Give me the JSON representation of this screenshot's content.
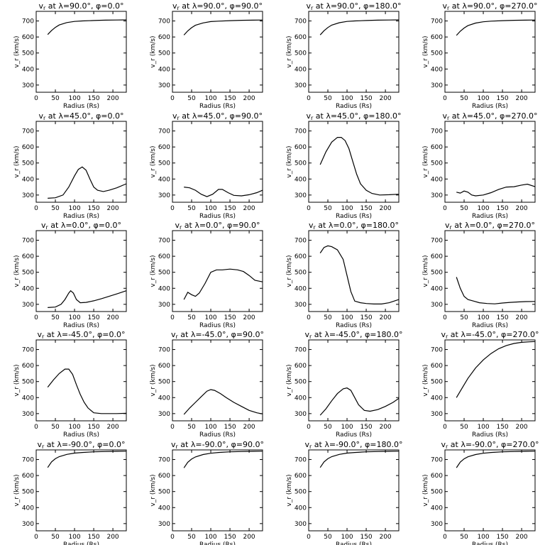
{
  "chart_data": [
    {
      "type": "line",
      "title": "v_r at λ=90.0°, φ=0.0°",
      "title_parts": {
        "lambda": "90.0",
        "phi": "0.0"
      },
      "xlabel": "Radius (Rs)",
      "ylabel": "v_r (km/s)",
      "xlim": [
        0,
        235
      ],
      "ylim": [
        255,
        760
      ],
      "xticks": [
        0,
        50,
        100,
        150,
        200
      ],
      "yticks": [
        300,
        400,
        500,
        600,
        700
      ],
      "x": [
        30,
        40,
        50,
        60,
        80,
        100,
        120,
        150,
        180,
        210,
        235
      ],
      "values": [
        615,
        640,
        660,
        675,
        690,
        697,
        700,
        703,
        705,
        706,
        707
      ]
    },
    {
      "type": "line",
      "title": "v_r at λ=90.0°, φ=90.0°",
      "title_parts": {
        "lambda": "90.0",
        "phi": "90.0"
      },
      "xlabel": "Radius (Rs)",
      "ylabel": "v_r (km/s)",
      "xlim": [
        0,
        235
      ],
      "ylim": [
        255,
        760
      ],
      "xticks": [
        0,
        50,
        100,
        150,
        200
      ],
      "yticks": [
        300,
        400,
        500,
        600,
        700
      ],
      "x": [
        30,
        40,
        50,
        60,
        80,
        100,
        120,
        150,
        180,
        210,
        235
      ],
      "values": [
        612,
        638,
        658,
        673,
        688,
        696,
        699,
        702,
        704,
        705,
        706
      ]
    },
    {
      "type": "line",
      "title": "v_r at λ=90.0°, φ=180.0°",
      "title_parts": {
        "lambda": "90.0",
        "phi": "180.0"
      },
      "xlabel": "Radius (Rs)",
      "ylabel": "v_r (km/s)",
      "xlim": [
        0,
        235
      ],
      "ylim": [
        255,
        760
      ],
      "xticks": [
        0,
        50,
        100,
        150,
        200
      ],
      "yticks": [
        300,
        400,
        500,
        600,
        700
      ],
      "x": [
        30,
        40,
        50,
        60,
        80,
        100,
        120,
        150,
        180,
        210,
        235
      ],
      "values": [
        613,
        639,
        659,
        674,
        689,
        697,
        700,
        703,
        705,
        706,
        707
      ]
    },
    {
      "type": "line",
      "title": "v_r at λ=90.0°, φ=270.0°",
      "title_parts": {
        "lambda": "90.0",
        "phi": "270.0"
      },
      "xlabel": "Radius (Rs)",
      "ylabel": "v_r (km/s)",
      "xlim": [
        0,
        235
      ],
      "ylim": [
        255,
        760
      ],
      "xticks": [
        0,
        50,
        100,
        150,
        200
      ],
      "yticks": [
        300,
        400,
        500,
        600,
        700
      ],
      "x": [
        30,
        40,
        50,
        60,
        80,
        100,
        120,
        150,
        180,
        210,
        235
      ],
      "values": [
        610,
        636,
        656,
        671,
        687,
        695,
        699,
        702,
        704,
        705,
        706
      ]
    },
    {
      "type": "line",
      "title": "v_r at λ=45.0°, φ=0.0°",
      "title_parts": {
        "lambda": "45.0",
        "phi": "0.0"
      },
      "xlabel": "Radius (Rs)",
      "ylabel": "v_r (km/s)",
      "xlim": [
        0,
        235
      ],
      "ylim": [
        255,
        760
      ],
      "xticks": [
        0,
        50,
        100,
        150,
        200
      ],
      "yticks": [
        300,
        400,
        500,
        600,
        700
      ],
      "x": [
        30,
        50,
        70,
        85,
        100,
        110,
        120,
        130,
        140,
        150,
        160,
        175,
        190,
        210,
        235
      ],
      "values": [
        280,
        283,
        300,
        350,
        420,
        460,
        475,
        455,
        400,
        350,
        330,
        322,
        330,
        345,
        370
      ]
    },
    {
      "type": "line",
      "title": "v_r at λ=45.0°, φ=90.0°",
      "title_parts": {
        "lambda": "45.0",
        "phi": "90.0"
      },
      "xlabel": "Radius (Rs)",
      "ylabel": "v_r (km/s)",
      "xlim": [
        0,
        235
      ],
      "ylim": [
        255,
        760
      ],
      "xticks": [
        0,
        50,
        100,
        150,
        200
      ],
      "yticks": [
        300,
        400,
        500,
        600,
        700
      ],
      "x": [
        30,
        45,
        60,
        75,
        90,
        105,
        120,
        130,
        145,
        160,
        180,
        200,
        220,
        235
      ],
      "values": [
        350,
        345,
        330,
        305,
        290,
        305,
        335,
        335,
        315,
        298,
        295,
        302,
        315,
        330
      ]
    },
    {
      "type": "line",
      "title": "v_r at λ=45.0°, φ=180.0°",
      "title_parts": {
        "lambda": "45.0",
        "phi": "180.0"
      },
      "xlabel": "Radius (Rs)",
      "ylabel": "v_r (km/s)",
      "xlim": [
        0,
        235
      ],
      "ylim": [
        255,
        760
      ],
      "xticks": [
        0,
        50,
        100,
        150,
        200
      ],
      "yticks": [
        300,
        400,
        500,
        600,
        700
      ],
      "x": [
        30,
        45,
        60,
        75,
        85,
        95,
        105,
        115,
        125,
        135,
        150,
        165,
        185,
        210,
        235
      ],
      "values": [
        490,
        570,
        630,
        660,
        660,
        640,
        590,
        510,
        430,
        370,
        330,
        310,
        300,
        302,
        305
      ]
    },
    {
      "type": "line",
      "title": "v_r at λ=45.0°, φ=270.0°",
      "title_parts": {
        "lambda": "45.0",
        "phi": "270.0"
      },
      "xlabel": "Radius (Rs)",
      "ylabel": "v_r (km/s)",
      "xlim": [
        0,
        235
      ],
      "ylim": [
        255,
        760
      ],
      "xticks": [
        0,
        50,
        100,
        150,
        200
      ],
      "yticks": [
        300,
        400,
        500,
        600,
        700
      ],
      "x": [
        30,
        40,
        50,
        60,
        70,
        80,
        100,
        120,
        140,
        160,
        180,
        200,
        215,
        235
      ],
      "values": [
        318,
        312,
        325,
        318,
        300,
        295,
        300,
        315,
        335,
        350,
        352,
        362,
        368,
        352
      ]
    },
    {
      "type": "line",
      "title": "v_r at λ=0.0°, φ=0.0°",
      "title_parts": {
        "lambda": "0.0",
        "phi": "0.0"
      },
      "xlabel": "Radius (Rs)",
      "ylabel": "v_r (km/s)",
      "xlim": [
        0,
        235
      ],
      "ylim": [
        255,
        760
      ],
      "xticks": [
        0,
        50,
        100,
        150,
        200
      ],
      "yticks": [
        300,
        400,
        500,
        600,
        700
      ],
      "x": [
        30,
        50,
        65,
        75,
        85,
        90,
        97,
        105,
        115,
        130,
        150,
        170,
        190,
        210,
        235
      ],
      "values": [
        280,
        283,
        300,
        330,
        370,
        385,
        370,
        330,
        310,
        312,
        322,
        335,
        350,
        365,
        385
      ]
    },
    {
      "type": "line",
      "title": "v_r at λ=0.0°, φ=90.0°",
      "title_parts": {
        "lambda": "0.0",
        "phi": "90.0"
      },
      "xlabel": "Radius (Rs)",
      "ylabel": "v_r (km/s)",
      "xlim": [
        0,
        235
      ],
      "ylim": [
        255,
        760
      ],
      "xticks": [
        0,
        50,
        100,
        150,
        200
      ],
      "yticks": [
        300,
        400,
        500,
        600,
        700
      ],
      "x": [
        30,
        40,
        50,
        60,
        70,
        85,
        100,
        115,
        130,
        150,
        170,
        185,
        200,
        215,
        235
      ],
      "values": [
        330,
        375,
        360,
        350,
        370,
        430,
        500,
        515,
        515,
        520,
        515,
        505,
        480,
        450,
        440
      ]
    },
    {
      "type": "line",
      "title": "v_r at λ=0.0°, φ=180.0°",
      "title_parts": {
        "lambda": "0.0",
        "phi": "180.0"
      },
      "xlabel": "Radius (Rs)",
      "ylabel": "v_r (km/s)",
      "xlim": [
        0,
        235
      ],
      "ylim": [
        255,
        760
      ],
      "xticks": [
        0,
        50,
        100,
        150,
        200
      ],
      "yticks": [
        300,
        400,
        500,
        600,
        700
      ],
      "x": [
        30,
        40,
        50,
        60,
        75,
        90,
        100,
        110,
        120,
        135,
        150,
        170,
        190,
        210,
        235
      ],
      "values": [
        620,
        655,
        665,
        660,
        640,
        580,
        480,
        380,
        320,
        310,
        305,
        302,
        302,
        310,
        330
      ]
    },
    {
      "type": "line",
      "title": "v_r at λ=0.0°, φ=270.0°",
      "title_parts": {
        "lambda": "0.0",
        "phi": "270.0"
      },
      "xlabel": "Radius (Rs)",
      "ylabel": "v_r (km/s)",
      "xlim": [
        0,
        235
      ],
      "ylim": [
        255,
        760
      ],
      "xticks": [
        0,
        50,
        100,
        150,
        200
      ],
      "yticks": [
        300,
        400,
        500,
        600,
        700
      ],
      "x": [
        30,
        40,
        50,
        60,
        75,
        90,
        110,
        130,
        150,
        170,
        190,
        210,
        235
      ],
      "values": [
        470,
        400,
        350,
        330,
        320,
        310,
        305,
        303,
        308,
        312,
        315,
        317,
        318
      ]
    },
    {
      "type": "line",
      "title": "v_r at λ=-45.0°, φ=0.0°",
      "title_parts": {
        "lambda": "-45.0",
        "phi": "0.0"
      },
      "xlabel": "Radius (Rs)",
      "ylabel": "v_r (km/s)",
      "xlim": [
        0,
        235
      ],
      "ylim": [
        255,
        760
      ],
      "xticks": [
        0,
        50,
        100,
        150,
        200
      ],
      "yticks": [
        300,
        400,
        500,
        600,
        700
      ],
      "x": [
        30,
        45,
        60,
        75,
        85,
        95,
        105,
        115,
        125,
        135,
        150,
        170,
        190,
        210,
        235
      ],
      "values": [
        465,
        510,
        550,
        578,
        578,
        545,
        480,
        420,
        370,
        335,
        305,
        300,
        300,
        300,
        302
      ]
    },
    {
      "type": "line",
      "title": "v_r at λ=-45.0°, φ=90.0°",
      "title_parts": {
        "lambda": "-45.0",
        "phi": "90.0"
      },
      "xlabel": "Radius (Rs)",
      "ylabel": "v_r (km/s)",
      "xlim": [
        0,
        235
      ],
      "ylim": [
        255,
        760
      ],
      "xticks": [
        0,
        50,
        100,
        150,
        200
      ],
      "yticks": [
        300,
        400,
        500,
        600,
        700
      ],
      "x": [
        30,
        45,
        60,
        75,
        90,
        100,
        110,
        125,
        140,
        160,
        180,
        200,
        220,
        235
      ],
      "values": [
        295,
        335,
        370,
        405,
        440,
        450,
        445,
        425,
        400,
        370,
        345,
        320,
        305,
        298
      ]
    },
    {
      "type": "line",
      "title": "v_r at λ=-45.0°, φ=180.0°",
      "title_parts": {
        "lambda": "-45.0",
        "phi": "180.0"
      },
      "xlabel": "Radius (Rs)",
      "ylabel": "v_r (km/s)",
      "xlim": [
        0,
        235
      ],
      "ylim": [
        255,
        760
      ],
      "xticks": [
        0,
        50,
        100,
        150,
        200
      ],
      "yticks": [
        300,
        400,
        500,
        600,
        700
      ],
      "x": [
        30,
        45,
        60,
        75,
        90,
        100,
        110,
        120,
        130,
        145,
        160,
        180,
        200,
        220,
        235
      ],
      "values": [
        290,
        330,
        380,
        425,
        455,
        460,
        445,
        400,
        355,
        320,
        315,
        325,
        345,
        370,
        395
      ]
    },
    {
      "type": "line",
      "title": "v_r at λ=-45.0°, φ=270.0°",
      "title_parts": {
        "lambda": "-45.0",
        "phi": "270.0"
      },
      "xlabel": "Radius (Rs)",
      "ylabel": "v_r (km/s)",
      "xlim": [
        0,
        235
      ],
      "ylim": [
        255,
        760
      ],
      "xticks": [
        0,
        50,
        100,
        150,
        200
      ],
      "yticks": [
        300,
        400,
        500,
        600,
        700
      ],
      "x": [
        30,
        45,
        60,
        80,
        100,
        120,
        140,
        160,
        180,
        200,
        220,
        235
      ],
      "values": [
        400,
        460,
        520,
        585,
        635,
        675,
        705,
        725,
        738,
        745,
        748,
        750
      ]
    },
    {
      "type": "line",
      "title": "v_r at λ=-90.0°, φ=0.0°",
      "title_parts": {
        "lambda": "-90.0",
        "phi": "0.0"
      },
      "xlabel": "Radius (Rs)",
      "ylabel": "v_r (km/s)",
      "xlim": [
        0,
        235
      ],
      "ylim": [
        255,
        760
      ],
      "xticks": [
        0,
        50,
        100,
        150,
        200
      ],
      "yticks": [
        300,
        400,
        500,
        600,
        700
      ],
      "x": [
        30,
        40,
        50,
        60,
        80,
        100,
        120,
        150,
        180,
        210,
        235
      ],
      "values": [
        650,
        685,
        705,
        718,
        732,
        740,
        744,
        748,
        750,
        751,
        752
      ]
    },
    {
      "type": "line",
      "title": "v_r at λ=-90.0°, φ=90.0°",
      "title_parts": {
        "lambda": "-90.0",
        "phi": "90.0"
      },
      "xlabel": "Radius (Rs)",
      "ylabel": "v_r (km/s)",
      "xlim": [
        0,
        235
      ],
      "ylim": [
        255,
        760
      ],
      "xticks": [
        0,
        50,
        100,
        150,
        200
      ],
      "yticks": [
        300,
        400,
        500,
        600,
        700
      ],
      "x": [
        30,
        40,
        50,
        60,
        80,
        100,
        120,
        150,
        180,
        210,
        235
      ],
      "values": [
        648,
        683,
        703,
        716,
        731,
        739,
        744,
        748,
        750,
        751,
        752
      ]
    },
    {
      "type": "line",
      "title": "v_r at λ=-90.0°, φ=180.0°",
      "title_parts": {
        "lambda": "-90.0",
        "phi": "180.0"
      },
      "xlabel": "Radius (Rs)",
      "ylabel": "v_r (km/s)",
      "xlim": [
        0,
        235
      ],
      "ylim": [
        255,
        760
      ],
      "xticks": [
        0,
        50,
        100,
        150,
        200
      ],
      "yticks": [
        300,
        400,
        500,
        600,
        700
      ],
      "x": [
        30,
        40,
        50,
        60,
        80,
        100,
        120,
        150,
        180,
        210,
        235
      ],
      "values": [
        650,
        685,
        705,
        718,
        732,
        740,
        744,
        748,
        750,
        751,
        752
      ]
    },
    {
      "type": "line",
      "title": "v_r at λ=-90.0°, φ=270.0°",
      "title_parts": {
        "lambda": "-90.0",
        "phi": "270.0"
      },
      "xlabel": "Radius (Rs)",
      "ylabel": "v_r (km/s)",
      "xlim": [
        0,
        235
      ],
      "ylim": [
        255,
        760
      ],
      "xticks": [
        0,
        50,
        100,
        150,
        200
      ],
      "yticks": [
        300,
        400,
        500,
        600,
        700
      ],
      "x": [
        30,
        40,
        50,
        60,
        80,
        100,
        120,
        150,
        180,
        210,
        235
      ],
      "values": [
        649,
        684,
        704,
        717,
        731,
        739,
        744,
        748,
        750,
        751,
        752
      ]
    }
  ]
}
